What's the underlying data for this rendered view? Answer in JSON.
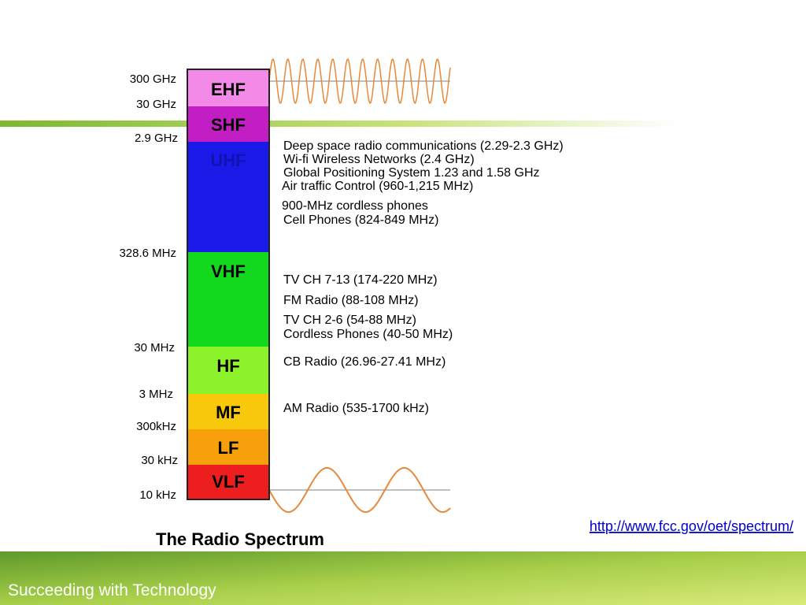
{
  "bands": [
    "EHF",
    "SHF",
    "UHF",
    "VHF",
    "HF",
    "MF",
    "LF",
    "VLF"
  ],
  "frequencies": [
    "300 GHz",
    "30 GHz",
    "2.9 GHz",
    "328.6 MHz",
    "30 MHz",
    "3 MHz",
    "300kHz",
    "30 kHz",
    "10 kHz"
  ],
  "uses": [
    "Deep space radio communications (2.29-2.3 GHz)",
    "Wi-fi Wireless Networks (2.4 GHz)",
    "Global Positioning System 1.23 and 1.58 GHz",
    "Air traffic Control (960-1,215 MHz)",
    "900-MHz cordless phones",
    "Cell Phones (824-849 MHz)",
    "TV CH 7-13 (174-220 MHz)",
    "FM Radio (88-108 MHz)",
    "TV CH 2-6 (54-88 MHz)",
    "Cordless Phones (40-50 MHz)",
    "CB Radio (26.96-27.41 MHz)",
    "AM Radio (535-1700 kHz)"
  ],
  "link": "http://www.fcc.gov/oet/spectrum/",
  "caption": "The Radio Spectrum",
  "footer": "Succeeding with Technology"
}
